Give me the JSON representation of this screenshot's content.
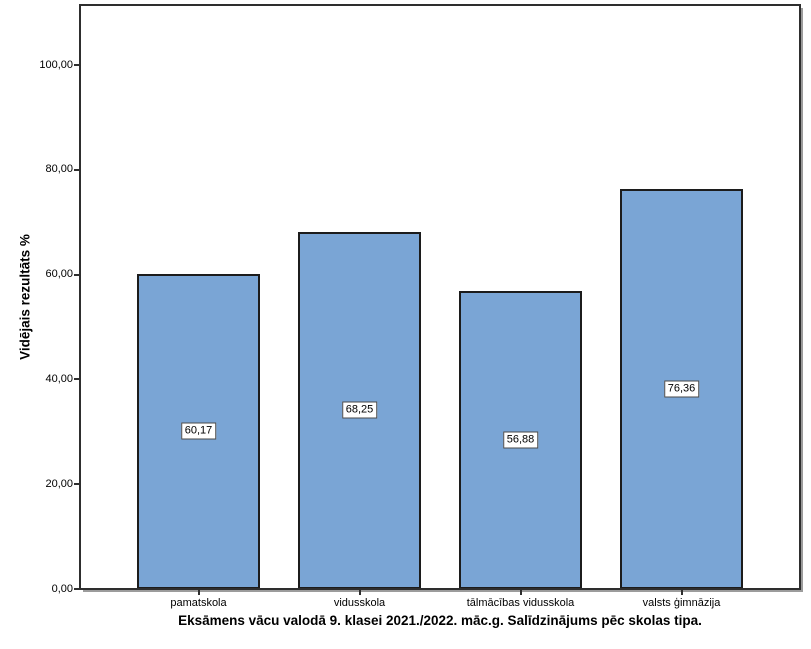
{
  "chart_data": {
    "type": "bar",
    "title": "Eksāmens vācu valodā 9. klasei 2021./2022. māc.g. Salīdzinājums pēc skolas tipa.",
    "ylabel": "Vidējais rezultāts %",
    "xlabel": "",
    "categories": [
      "pamatskola",
      "vidusskola",
      "tālmācības vidusskola",
      "valsts ģimnāzija"
    ],
    "values": [
      60.17,
      68.25,
      56.88,
      76.36
    ],
    "value_labels": [
      "60,17",
      "68,25",
      "56,88",
      "76,36"
    ],
    "yticks": [
      0,
      20,
      40,
      60,
      80,
      100
    ],
    "ytick_labels": [
      "0,00",
      "20,00",
      "40,00",
      "60,00",
      "80,00",
      "100,00"
    ],
    "ylim": [
      0,
      111.5
    ],
    "grid": false,
    "legend": null,
    "colors": {
      "bar_fill": "#7AA5D5",
      "bar_border": "#1C1C1C",
      "frame": "#2E2E2E",
      "frame_shadow": "#9C9C9C",
      "background": "#FFFFFF",
      "text": "#000000"
    }
  }
}
